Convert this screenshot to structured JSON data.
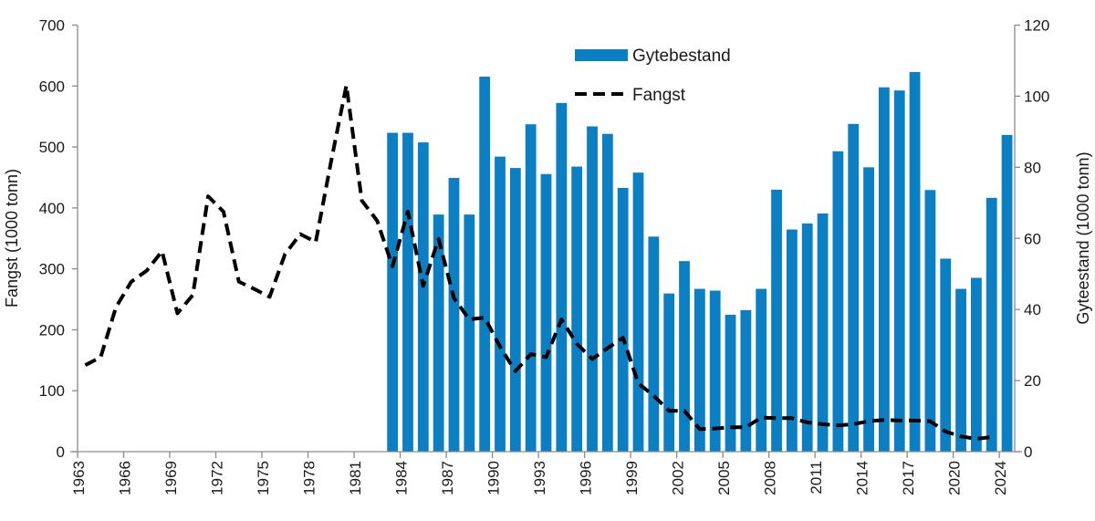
{
  "chart_data": {
    "type": "bar+line",
    "categories": [
      "1963",
      "1964",
      "1965",
      "1966",
      "1967",
      "1968",
      "1969",
      "1970",
      "1971",
      "1972",
      "1973",
      "1974",
      "1975",
      "1976",
      "1977",
      "1978",
      "1979",
      "1980",
      "1981",
      "1982",
      "1983",
      "1984",
      "1985",
      "1986",
      "1987",
      "1988",
      "1989",
      "1990",
      "1991",
      "1992",
      "1993",
      "1994",
      "1995",
      "1996",
      "1997",
      "1998",
      "1999",
      "2000",
      "2001",
      "2002",
      "2003",
      "2004",
      "2005",
      "2006",
      "2007",
      "2008",
      "2009",
      "2010",
      "2011",
      "2012",
      "2013",
      "2014",
      "2015",
      "2016",
      "2017",
      "2018",
      "2019",
      "2020",
      "2021",
      "2022",
      "2024"
    ],
    "tick_labels": [
      "1963",
      "1966",
      "1969",
      "1972",
      "1975",
      "1978",
      "1981",
      "1984",
      "1987",
      "1990",
      "1993",
      "1996",
      "1999",
      "2002",
      "2005",
      "2008",
      "2011",
      "2014",
      "2017",
      "2020",
      "2024"
    ],
    "ylabel_left": "Fangst (1000 tonn)",
    "ylabel_right": "Gyteestand (1000 tonn)",
    "ylim_left": [
      0,
      700
    ],
    "yticks_left": [
      "0",
      "100",
      "200",
      "300",
      "400",
      "500",
      "600",
      "700"
    ],
    "ylim_right": [
      0,
      120
    ],
    "yticks_right": [
      "0",
      "20",
      "40",
      "60",
      "80",
      "100",
      "120"
    ],
    "grid": false,
    "legend_position": "top-center",
    "series": [
      {
        "name": "Gytebestand",
        "type": "bar",
        "axis": "right",
        "color": "#0a7fc4",
        "values": [
          null,
          null,
          null,
          null,
          null,
          null,
          null,
          null,
          null,
          null,
          null,
          null,
          null,
          null,
          null,
          null,
          null,
          null,
          null,
          null,
          89.7,
          89.7,
          87.0,
          66.7,
          77.0,
          66.7,
          105.5,
          83.0,
          79.8,
          92.1,
          78.1,
          98.1,
          80.2,
          91.5,
          89.4,
          74.2,
          78.5,
          60.5,
          44.5,
          53.6,
          45.8,
          45.3,
          38.5,
          39.8,
          45.8,
          73.7,
          62.5,
          64.2,
          67.0,
          84.5,
          92.2,
          80.0,
          102.5,
          101.6,
          106.8,
          73.6,
          54.3,
          45.8,
          48.9,
          71.4,
          89.1
        ]
      },
      {
        "name": "Fangst",
        "type": "line",
        "axis": "left",
        "style": "dashed",
        "color": "#000000",
        "values": [
          142,
          155,
          237,
          279,
          297,
          329,
          227,
          257,
          419,
          394,
          279,
          267,
          254,
          324,
          357,
          344,
          476,
          601,
          412,
          379,
          304,
          394,
          272,
          349,
          252,
          217,
          220,
          172,
          132,
          160,
          155,
          217,
          177,
          152,
          170,
          187,
          112,
          92,
          67,
          67,
          37,
          38,
          40,
          40,
          56,
          55,
          55,
          48,
          45,
          43,
          45,
          50,
          52,
          51,
          51,
          50,
          33,
          25,
          21,
          24,
          null
        ]
      }
    ]
  }
}
